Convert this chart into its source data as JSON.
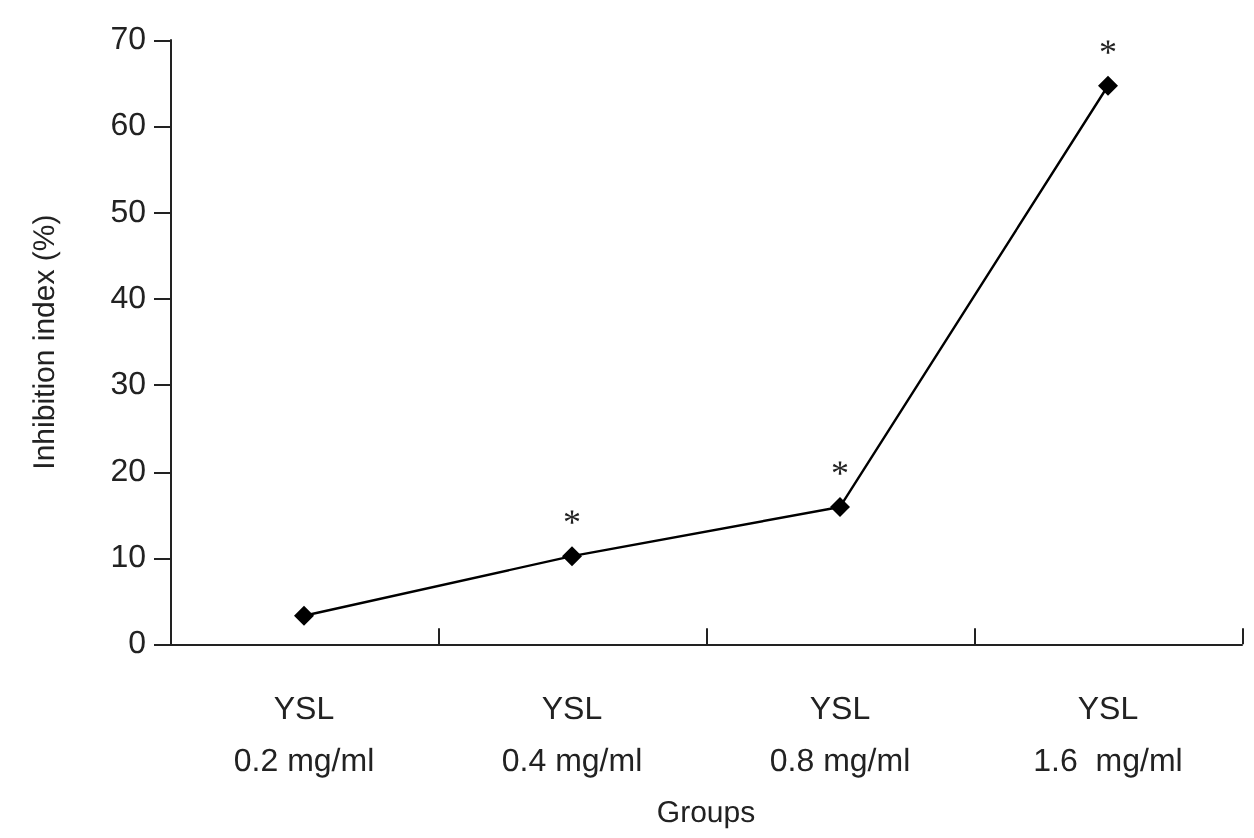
{
  "chart_data": {
    "type": "line",
    "xlabel": "Groups",
    "ylabel": "Inhibition index (%)",
    "categories": [
      "YSL\n0.2 mg/ml",
      "YSL\n0.4 mg/ml",
      "YSL\n0.8 mg/ml",
      "YSL\n1.6  mg/ml"
    ],
    "series": [
      {
        "color": "#000000",
        "values": [
          3.3,
          10.2,
          15.9,
          64.7
        ]
      }
    ],
    "ylim": [
      0,
      70
    ],
    "yticks": [
      0,
      10,
      20,
      30,
      40,
      50,
      60,
      70
    ],
    "grid": false,
    "marker": "diamond",
    "line_style": "solid",
    "annotations": [
      {
        "text": "*",
        "x": "YSL\n0.4 mg/ml",
        "y": 10.2
      },
      {
        "text": "*",
        "x": "YSL\n0.8 mg/ml",
        "y": 15.9
      },
      {
        "text": "*",
        "x": "YSL\n1.6  mg/ml",
        "y": 64.7
      }
    ]
  }
}
